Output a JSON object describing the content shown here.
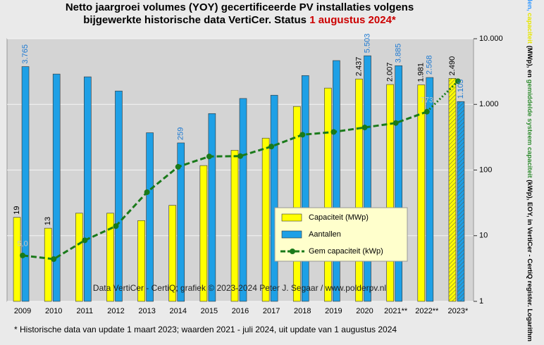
{
  "chart_data": {
    "type": "bar",
    "title_lines": [
      "Netto jaargroei volumes (YOY) gecertificeerde PV installaties volgens",
      "bijgewerkte historische data VertiCer. Status "
    ],
    "title_highlight": "1 augustus 2024*",
    "title_highlight_color": "#cc0000",
    "y_label_parts": [
      {
        "text": "Aantallen, ",
        "color": "#3399ff"
      },
      {
        "text": "capaciteit ",
        "color": "#e6e600"
      },
      {
        "text": "(MWp), en ",
        "color": "#000000"
      },
      {
        "text": "gemiddelde systeem capaciteit",
        "color": "#2e8b2e"
      },
      {
        "text": " (kWp), EOY, in VertiCer - CertiQ register. Logarithmisch !",
        "color": "#000000"
      }
    ],
    "watermark": "Data VertiCer - CertiQ; grafiek © 2023-2024 Peter J. Segaar / www.polderpv.nl",
    "footnote": "* Historische data van update 1 maart 2023; waarden 2021 - juli 2024, uit update van 1 augustus 2024",
    "categories": [
      "2009",
      "2010",
      "2011",
      "2012",
      "2013",
      "2014",
      "2015",
      "2016",
      "2017",
      "2018",
      "2019",
      "2020",
      "2021**",
      "2022**",
      "2023*"
    ],
    "log_scale": true,
    "grid": true,
    "hatch_last": true,
    "ylim": [
      1,
      10000
    ],
    "yticks": [
      1,
      10,
      100,
      {
        "value": 1000,
        "label": "1.000"
      },
      {
        "value": 10000,
        "label": "10.000"
      }
    ],
    "series": [
      {
        "name": "Capaciteit (MWp)",
        "kind": "bar",
        "color": "#ffff00",
        "label_color": "#000000",
        "values": [
          19,
          13,
          22,
          22,
          17,
          29,
          117,
          200,
          306,
          930,
          1770,
          2437,
          2007,
          1981,
          2490
        ],
        "value_labels": [
          "19",
          "13",
          null,
          null,
          null,
          null,
          null,
          null,
          null,
          null,
          null,
          "2.437",
          "2.007",
          "1.981",
          "2.490"
        ]
      },
      {
        "name": "Aantallen",
        "kind": "bar",
        "color": "#1ea0e6",
        "label_color": "#1e7ad2",
        "values": [
          3765,
          2900,
          2630,
          1600,
          370,
          259,
          725,
          1230,
          1380,
          2750,
          4650,
          5503,
          3885,
          2568,
          1105
        ],
        "value_labels": [
          "3.765",
          null,
          null,
          null,
          null,
          "259",
          null,
          null,
          null,
          null,
          null,
          "5.503",
          "3.885",
          "2.568",
          "1.105"
        ]
      },
      {
        "name": "Gem capaciteit (kWp)",
        "kind": "line",
        "color": "#1a7a1a",
        "label_color": "#c8c8c8",
        "values": [
          5.0,
          4.4,
          8.5,
          14,
          46,
          112,
          161,
          163,
          228,
          345,
          380,
          445,
          520,
          773,
          2253
        ],
        "value_labels": [
          "5,0",
          null,
          null,
          null,
          null,
          null,
          null,
          null,
          null,
          null,
          null,
          null,
          null,
          "773",
          null
        ]
      }
    ]
  }
}
